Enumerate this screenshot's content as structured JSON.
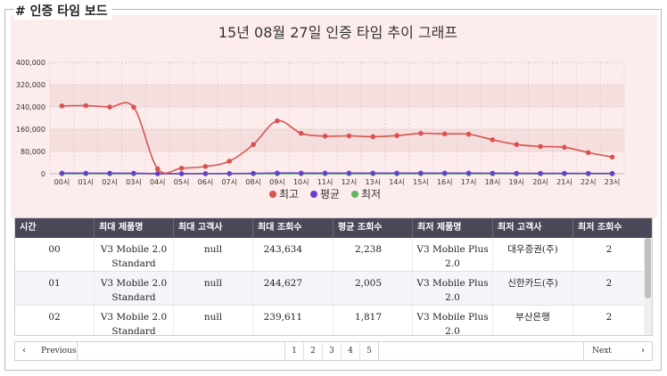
{
  "section_title": "# 인증 타임 보드",
  "chart_data": {
    "type": "line",
    "title": "15년 08월 27일 인증 타임 추이 그래프",
    "categories": [
      "00시",
      "01시",
      "02시",
      "03시",
      "04시",
      "05시",
      "06시",
      "07시",
      "08시",
      "09시",
      "10시",
      "11시",
      "12시",
      "13시",
      "14시",
      "15시",
      "16시",
      "17시",
      "18시",
      "19시",
      "20시",
      "21시",
      "22시",
      "23시"
    ],
    "y_ticks": [
      "0",
      "80,000",
      "160,000",
      "240,000",
      "320,000",
      "400,000"
    ],
    "ylim": [
      0,
      400000
    ],
    "grid": true,
    "legend_position": "bottom",
    "series": [
      {
        "name": "최고",
        "color": "#d9534f",
        "values": [
          243634,
          244627,
          239611,
          239000,
          18000,
          20000,
          26000,
          45000,
          105000,
          190000,
          145000,
          135000,
          136000,
          133000,
          137000,
          145000,
          143000,
          142000,
          122000,
          105000,
          98000,
          95000,
          76000,
          60000
        ]
      },
      {
        "name": "평균",
        "color": "#6a3fc8",
        "values": [
          2238,
          2005,
          1817,
          1700,
          300,
          300,
          400,
          800,
          1500,
          2600,
          2300,
          2200,
          2200,
          2100,
          2200,
          2300,
          2300,
          2200,
          1900,
          1600,
          1500,
          1400,
          1200,
          900
        ]
      },
      {
        "name": "최저",
        "color": "#5cb85c",
        "values": [
          2,
          2,
          2,
          2,
          1,
          1,
          1,
          1,
          1,
          1,
          1,
          1,
          1,
          1,
          1,
          1,
          1,
          1,
          1,
          1,
          1,
          1,
          1,
          1
        ]
      }
    ]
  },
  "table": {
    "columns": [
      "시간",
      "최대 제품명",
      "최대 고객사",
      "최대 조회수",
      "평균 조회수",
      "최저 제품명",
      "최저 고객사",
      "최저 조회수"
    ],
    "rows": [
      {
        "hour": "00",
        "max_product": "V3 Mobile 2.0 Standard",
        "max_customer": "null",
        "max_count": "243,634",
        "avg_count": "2,238",
        "min_product": "V3 Mobile Plus 2.0",
        "min_customer": "대우증권(주)",
        "min_count": "2"
      },
      {
        "hour": "01",
        "max_product": "V3 Mobile 2.0 Standard",
        "max_customer": "null",
        "max_count": "244,627",
        "avg_count": "2,005",
        "min_product": "V3 Mobile Plus 2.0",
        "min_customer": "신한카드(주)",
        "min_count": "2"
      },
      {
        "hour": "02",
        "max_product": "V3 Mobile 2.0 Standard",
        "max_customer": "null",
        "max_count": "239,611",
        "avg_count": "1,817",
        "min_product": "V3 Mobile Plus 2.0",
        "min_customer": "부산은행",
        "min_count": "2"
      }
    ]
  },
  "pagination": {
    "previous_label": "Previous",
    "next_label": "Next",
    "pages": [
      "1",
      "2",
      "3",
      "4",
      "5"
    ],
    "current": "1"
  },
  "icons": {
    "prev": "chevron-left-icon",
    "next": "chevron-right-icon"
  }
}
